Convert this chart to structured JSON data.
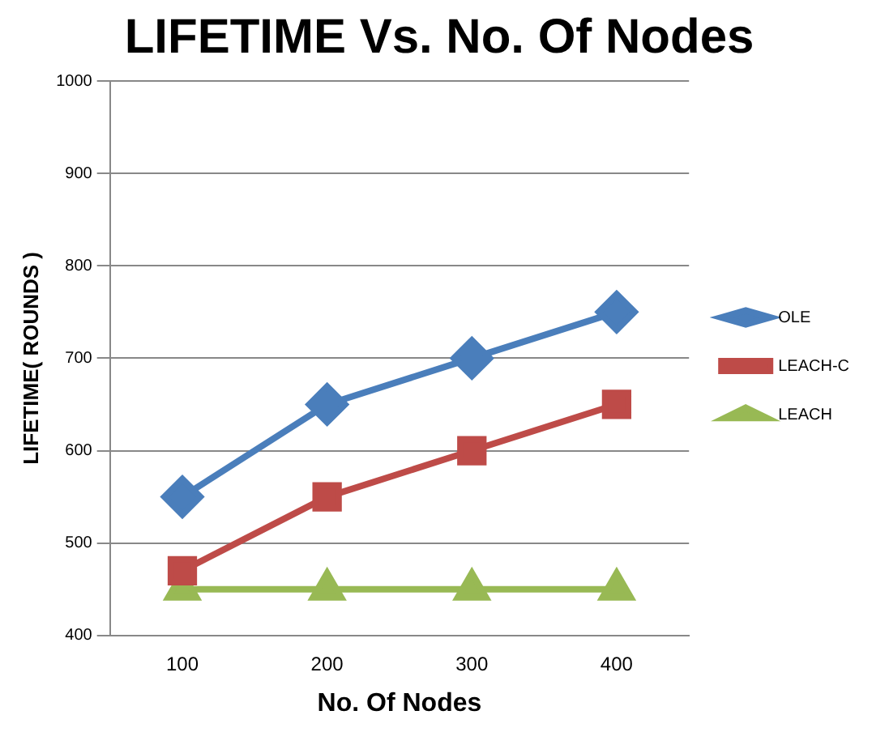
{
  "chart_data": {
    "type": "line",
    "title": "LIFETIME Vs. No. Of Nodes",
    "xlabel": "No. Of Nodes",
    "ylabel": "LIFETIME( ROUNDS )",
    "categories": [
      "100",
      "200",
      "300",
      "400"
    ],
    "series": [
      {
        "name": "OLE",
        "color": "#4a7ebb",
        "values": [
          550,
          650,
          700,
          750
        ],
        "marker": "diamond"
      },
      {
        "name": "LEACH-C",
        "color": "#be4b48",
        "values": [
          470,
          550,
          600,
          650
        ],
        "marker": "square"
      },
      {
        "name": "LEACH",
        "color": "#98b954",
        "values": [
          450,
          450,
          450,
          450
        ],
        "marker": "triangle"
      }
    ],
    "ylim": [
      400,
      1000
    ],
    "yticks": [
      400,
      500,
      600,
      700,
      800,
      900,
      1000
    ],
    "grid": "y",
    "legend": "right"
  }
}
